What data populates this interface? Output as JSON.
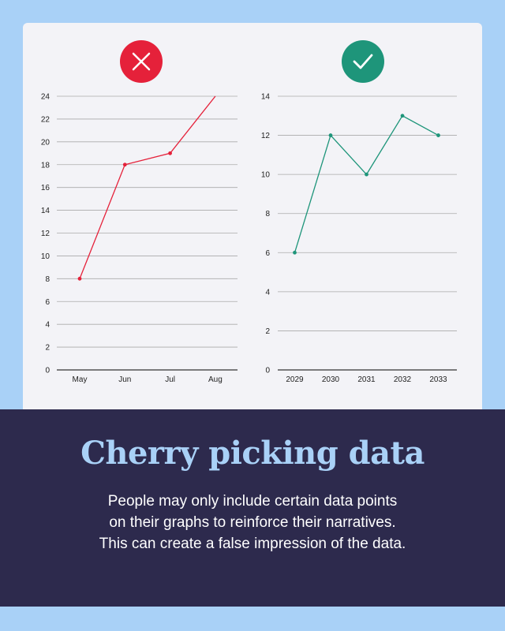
{
  "title": "Cherry picking data",
  "description_lines": [
    "People may only include certain data points",
    "on their graphs to reinforce their narratives.",
    "This can create a false impression of the data."
  ],
  "colors": {
    "background": "#a9d1f7",
    "card": "#f3f3f7",
    "footer": "#2d2a4d",
    "bad": "#e5213a",
    "good": "#1e957a",
    "headline": "#a9d1f7"
  },
  "badges": [
    {
      "icon": "x-icon",
      "meaning": "incorrect"
    },
    {
      "icon": "checkmark-icon",
      "meaning": "correct"
    }
  ],
  "chart_data": [
    {
      "type": "line",
      "categories": [
        "May",
        "Jun",
        "Jul",
        "Aug"
      ],
      "values": [
        8,
        18,
        19,
        24
      ],
      "ylim": [
        0,
        24
      ],
      "yticks": [
        0,
        2,
        4,
        6,
        8,
        10,
        12,
        14,
        16,
        18,
        20,
        22,
        24
      ],
      "color": "#e5213a",
      "grid": true,
      "xlabel": "",
      "ylabel": "",
      "title": ""
    },
    {
      "type": "line",
      "categories": [
        "2029",
        "2030",
        "2031",
        "2032",
        "2033"
      ],
      "values": [
        6,
        12,
        10,
        13,
        12
      ],
      "ylim": [
        0,
        14
      ],
      "yticks": [
        0,
        2,
        4,
        6,
        8,
        10,
        12,
        14
      ],
      "color": "#1e957a",
      "grid": true,
      "xlabel": "",
      "ylabel": "",
      "title": ""
    }
  ]
}
